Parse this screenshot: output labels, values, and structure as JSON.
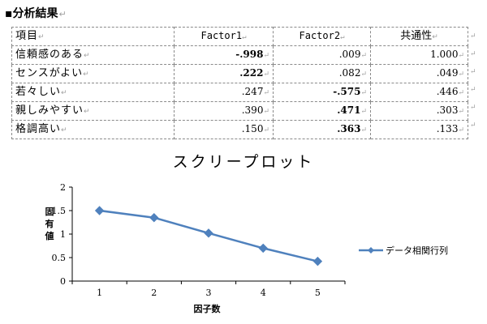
{
  "section": {
    "title": "分析結果",
    "bullet": "▪"
  },
  "paragraph_mark": "↵",
  "table": {
    "headers": [
      "項目",
      "Factor1",
      "Factor2",
      "共通性"
    ],
    "rows": [
      {
        "label": "信頼感のある",
        "factor1": "-.998",
        "factor2": ".009",
        "communality": "1.000",
        "bold": [
          true,
          false
        ]
      },
      {
        "label": "センスがよい",
        "factor1": ".222",
        "factor2": ".082",
        "communality": ".049",
        "bold": [
          true,
          false
        ]
      },
      {
        "label": "若々しい",
        "factor1": ".247",
        "factor2": "-.575",
        "communality": ".446",
        "bold": [
          false,
          true
        ]
      },
      {
        "label": "親しみやすい",
        "factor1": ".390",
        "factor2": ".471",
        "communality": ".303",
        "bold": [
          false,
          true
        ]
      },
      {
        "label": "格調高い",
        "factor1": ".150",
        "factor2": ".363",
        "communality": ".133",
        "bold": [
          false,
          true
        ]
      }
    ]
  },
  "chart_data": {
    "type": "line",
    "title": "スクリープロット",
    "xlabel": "因子数",
    "ylabel": "固有値",
    "x": [
      1,
      2,
      3,
      4,
      5
    ],
    "xticks": [
      "1",
      "2",
      "3",
      "4",
      "5"
    ],
    "yticks": [
      "0",
      "0.5",
      "1",
      "1.5",
      "2"
    ],
    "ylim": [
      0,
      2
    ],
    "series": [
      {
        "name": "データ相関行列",
        "values": [
          1.5,
          1.35,
          1.02,
          0.7,
          0.42
        ],
        "color": "#4f81bd",
        "marker": "diamond"
      }
    ],
    "legend": "right",
    "grid": false
  }
}
